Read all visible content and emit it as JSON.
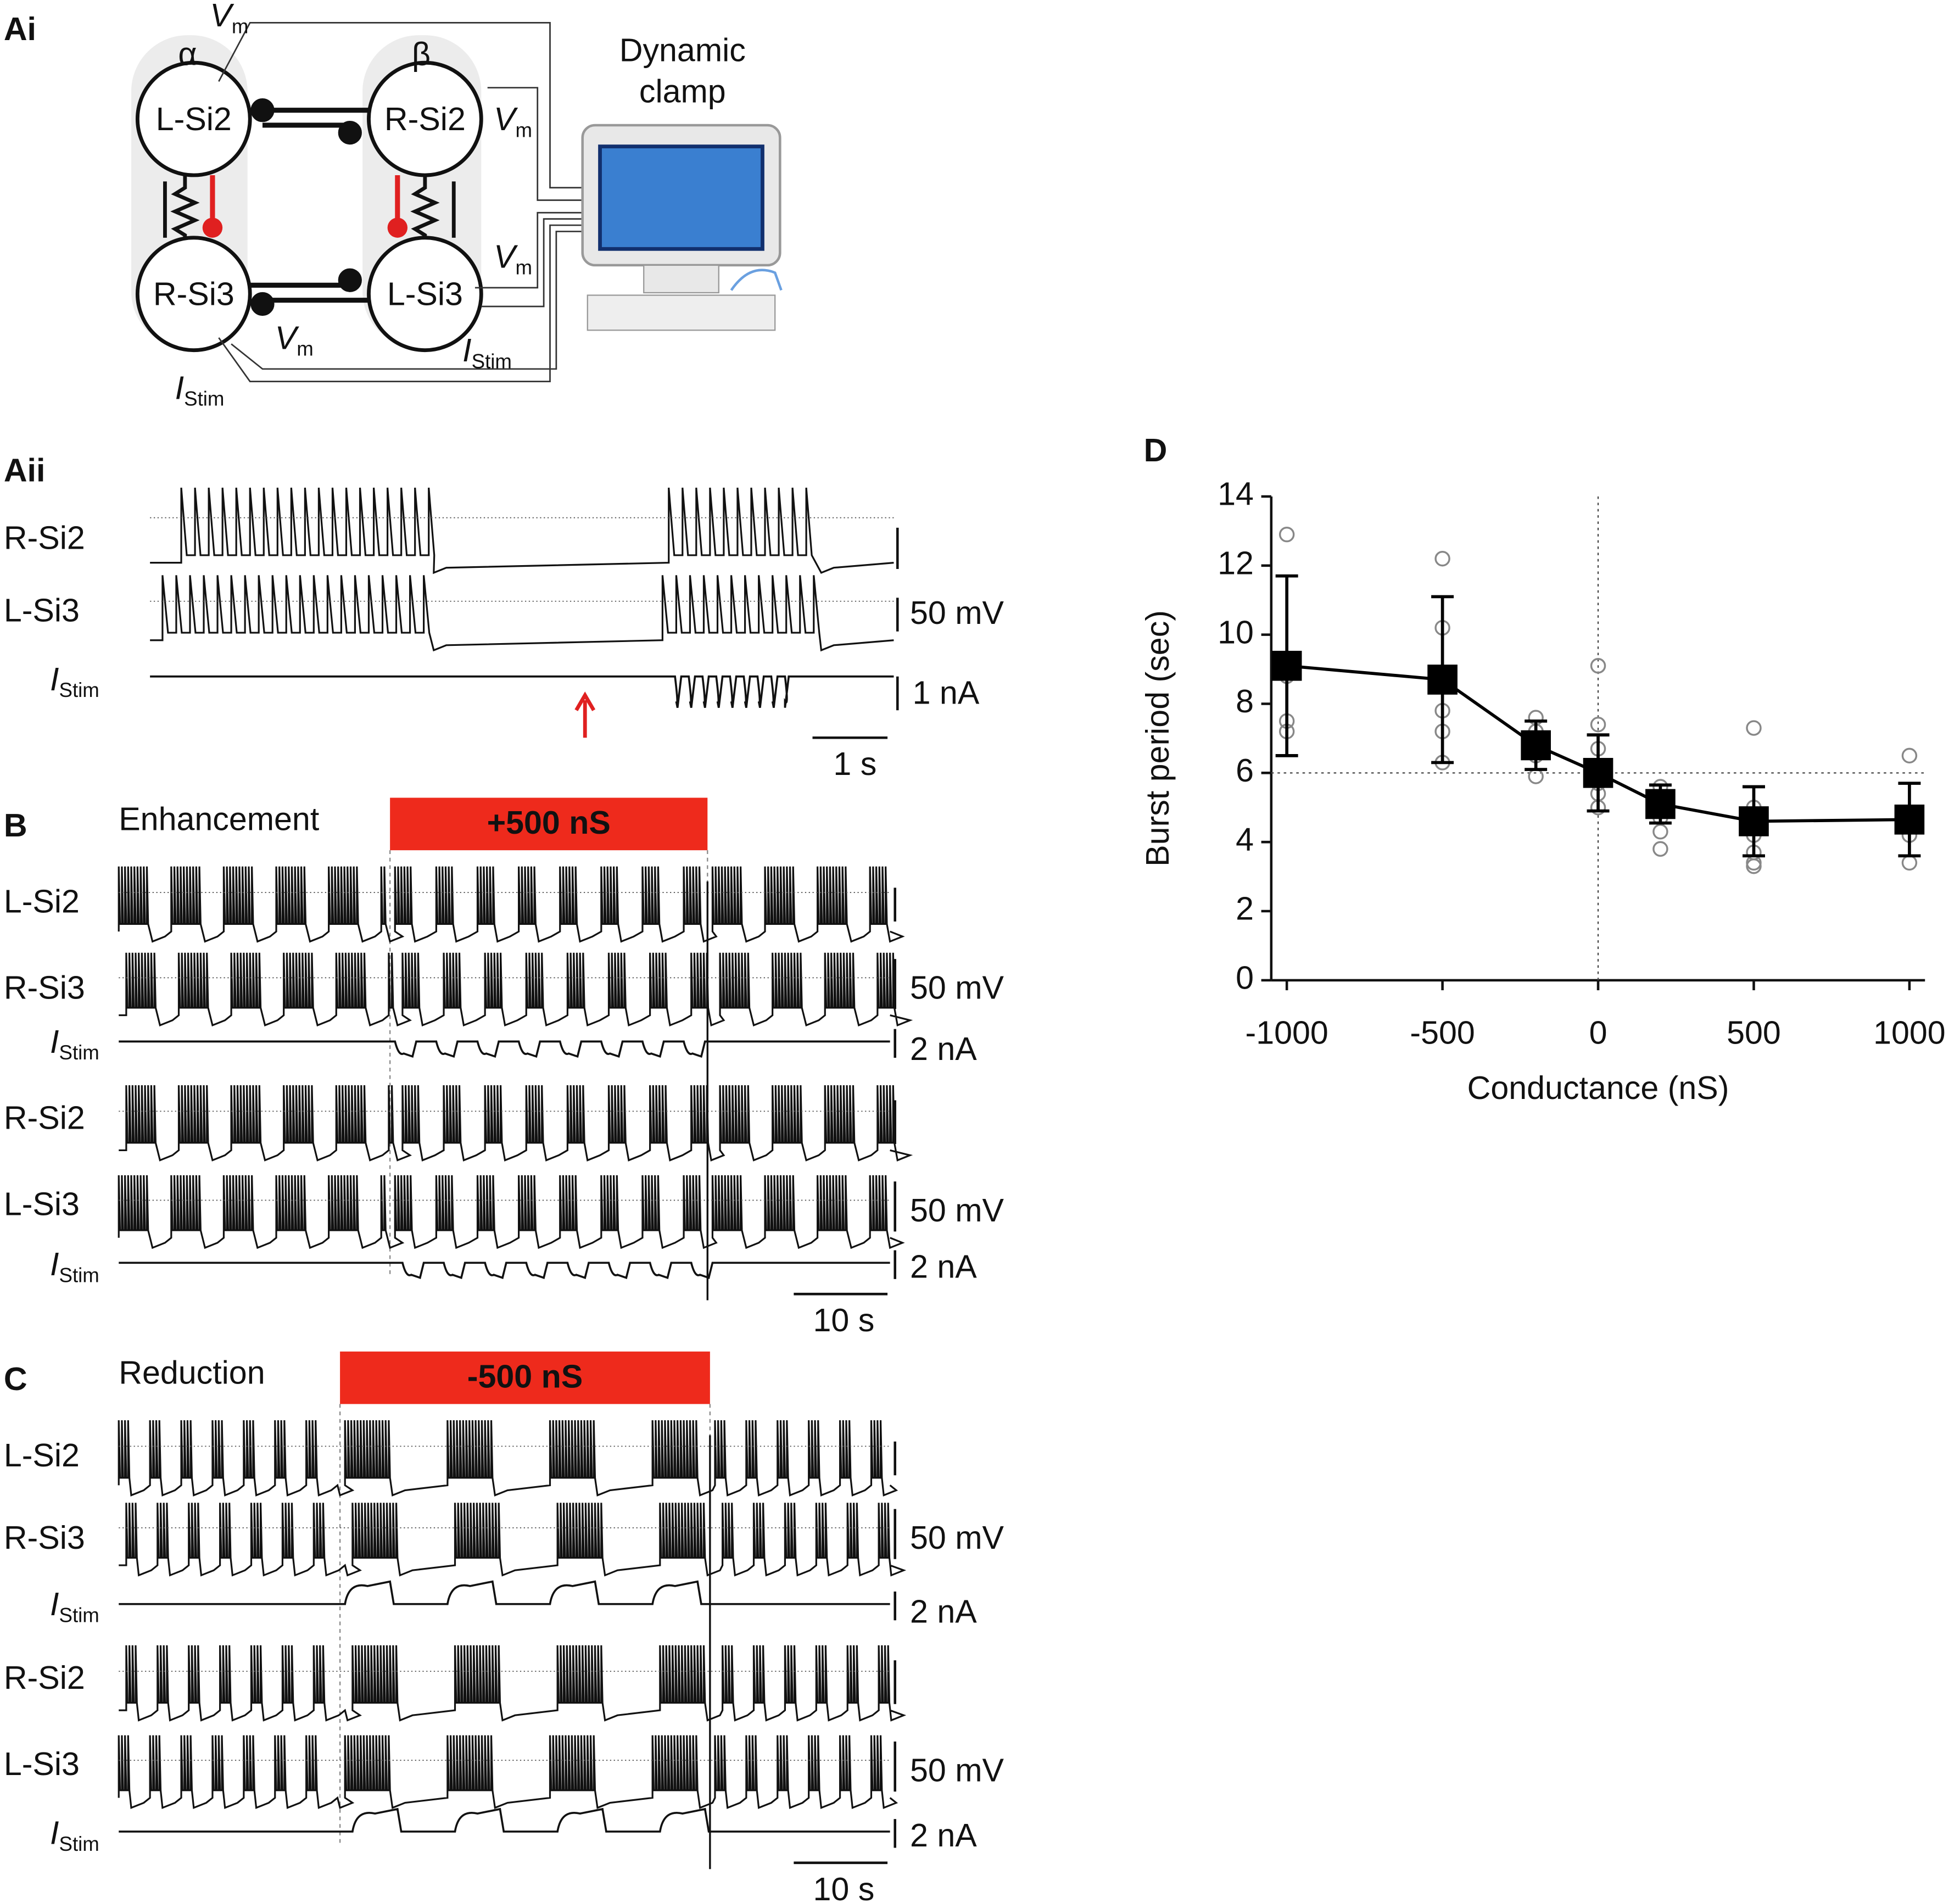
{
  "panel_labels": {
    "ai": "Ai",
    "aii": "Aii",
    "b": "B",
    "c": "C",
    "d": "D"
  },
  "diagram": {
    "alpha": "α",
    "beta": "β",
    "neurons": [
      "L-Si2",
      "R-Si2",
      "R-Si3",
      "L-Si3"
    ],
    "computer": [
      "Dynamic",
      "clamp"
    ]
  },
  "vm": {
    "main": "V",
    "sub": "m"
  },
  "istim": {
    "main": "I",
    "sub": "Stim"
  },
  "aii": {
    "traces": [
      "R-Si2",
      "L-Si3"
    ],
    "scale": [
      "50 mV",
      "1 nA",
      "1 s"
    ]
  },
  "b": {
    "title": "Enhancement",
    "bar": "+500 nS",
    "traces": [
      "L-Si2",
      "R-Si3",
      "R-Si2",
      "L-Si3"
    ],
    "scale": [
      "50 mV",
      "2 nA",
      "50 mV",
      "2 nA",
      "10 s"
    ]
  },
  "c": {
    "title": "Reduction",
    "bar": "-500 nS",
    "traces": [
      "L-Si2",
      "R-Si3",
      "R-Si2",
      "L-Si3"
    ],
    "scale": [
      "50 mV",
      "2 nA",
      "50 mV",
      "2 nA",
      "10 s"
    ]
  },
  "chart_data": {
    "type": "line",
    "xlabel": "Conductance (nS)",
    "ylabel": "Burst period (sec)",
    "x": [
      -1000,
      -500,
      -200,
      0,
      200,
      500,
      1000
    ],
    "series": [
      {
        "color": "#000000",
        "values": [
          9.1,
          8.7,
          6.8,
          6.0,
          5.1,
          4.6,
          4.65
        ],
        "errors": [
          2.6,
          2.4,
          0.7,
          1.1,
          0.55,
          1.0,
          1.05
        ]
      }
    ],
    "points": {
      "color": "#888888",
      "x": [
        -1000,
        -1000,
        -1000,
        -1000,
        -500,
        -500,
        -500,
        -500,
        -500,
        -200,
        -200,
        -200,
        -200,
        0,
        0,
        0,
        0,
        0,
        0,
        0,
        200,
        200,
        200,
        200,
        200,
        200,
        500,
        500,
        500,
        500,
        500,
        500,
        500,
        1000,
        1000,
        1000,
        1000
      ],
      "y": [
        12.9,
        8.8,
        7.5,
        7.2,
        12.2,
        10.2,
        7.8,
        7.2,
        6.3,
        7.6,
        7.2,
        6.5,
        5.9,
        9.1,
        7.4,
        6.7,
        6.2,
        5.7,
        5.4,
        5.0,
        5.6,
        5.3,
        5.0,
        4.7,
        4.3,
        3.8,
        7.3,
        5.0,
        4.6,
        4.2,
        3.7,
        3.4,
        3.3,
        6.5,
        4.6,
        4.2,
        3.4
      ]
    },
    "xlim": [
      -1050,
      1050
    ],
    "ylim": [
      0,
      14
    ],
    "xticks": [
      -1000,
      -500,
      0,
      500,
      1000
    ],
    "yticks": [
      0,
      2,
      4,
      6,
      8,
      10,
      12,
      14
    ],
    "hline": 6,
    "vline": 0
  }
}
